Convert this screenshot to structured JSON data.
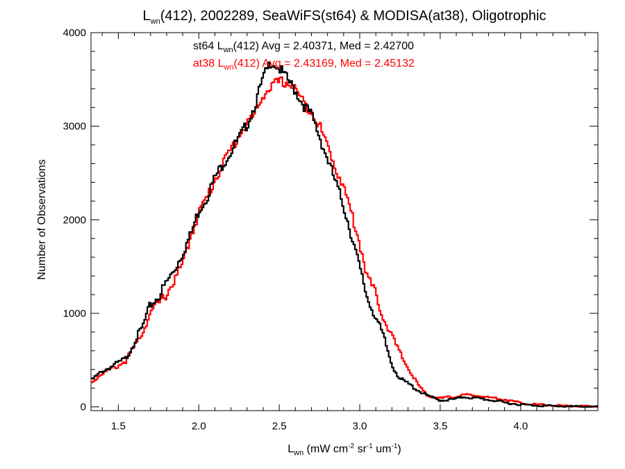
{
  "chart_data": {
    "type": "line",
    "title": {
      "main": "L",
      "main_sub": "wn",
      "rest": "(412), 2002289, SeaWiFS(st64) & MODISA(at38), Oligotrophic"
    },
    "xlabel": {
      "main": "L",
      "main_sub": "wn",
      "p1": " (mW cm",
      "sup1": "-2",
      "p2": " sr",
      "sup2": "-1",
      "p3": " um",
      "sup3": "-1",
      "p4": ")"
    },
    "ylabel": "Number of Observations",
    "xlim": [
      1.33,
      4.48
    ],
    "ylim": [
      -40,
      4000
    ],
    "xticks": [
      1.5,
      2.0,
      2.5,
      3.0,
      3.5,
      4.0
    ],
    "xtick_labels": [
      "1.5",
      "2.0",
      "2.5",
      "3.0",
      "3.5",
      "4.0"
    ],
    "yticks": [
      0,
      1000,
      2000,
      3000,
      4000
    ],
    "ytick_labels": [
      "0",
      "1000",
      "2000",
      "3000",
      "4000"
    ],
    "grid": false,
    "legend": [
      {
        "prefix": "st64 L",
        "sub": "wn",
        "suffix": "(412) Avg = 2.40371, Med = 2.42700",
        "color": "#000000"
      },
      {
        "prefix": "at38 L",
        "sub": "wn",
        "suffix": "(412) Avg = 2.43169, Med = 2.45132",
        "color": "#ff0000"
      }
    ],
    "series": [
      {
        "color": "#000000",
        "x": [
          1.33,
          1.4,
          1.5,
          1.55,
          1.6,
          1.65,
          1.7,
          1.75,
          1.8,
          1.85,
          1.9,
          1.95,
          2.0,
          2.05,
          2.1,
          2.15,
          2.2,
          2.25,
          2.3,
          2.35,
          2.4,
          2.45,
          2.5,
          2.55,
          2.6,
          2.65,
          2.7,
          2.75,
          2.8,
          2.85,
          2.9,
          2.95,
          3.0,
          3.05,
          3.1,
          3.15,
          3.2,
          3.25,
          3.3,
          3.35,
          3.4,
          3.45,
          3.5,
          3.55,
          3.6,
          3.65,
          3.7,
          3.75,
          3.8,
          3.85,
          3.9,
          3.95,
          4.0,
          4.05,
          4.1,
          4.2,
          4.3,
          4.4,
          4.48
        ],
        "y": [
          280,
          380,
          470,
          520,
          700,
          850,
          1090,
          1180,
          1330,
          1470,
          1650,
          1840,
          2100,
          2240,
          2450,
          2600,
          2730,
          2870,
          3020,
          3230,
          3510,
          3700,
          3620,
          3500,
          3380,
          3230,
          3120,
          2890,
          2650,
          2400,
          2150,
          1830,
          1480,
          1150,
          960,
          740,
          450,
          300,
          250,
          190,
          140,
          100,
          70,
          75,
          85,
          110,
          95,
          90,
          75,
          65,
          45,
          35,
          25,
          20,
          15,
          10,
          5,
          3,
          0
        ]
      },
      {
        "color": "#ff0000",
        "x": [
          1.33,
          1.4,
          1.5,
          1.55,
          1.6,
          1.65,
          1.7,
          1.75,
          1.8,
          1.85,
          1.9,
          1.95,
          2.0,
          2.05,
          2.1,
          2.15,
          2.2,
          2.25,
          2.3,
          2.35,
          2.4,
          2.45,
          2.5,
          2.55,
          2.6,
          2.65,
          2.7,
          2.75,
          2.8,
          2.85,
          2.9,
          2.95,
          3.0,
          3.05,
          3.1,
          3.15,
          3.2,
          3.25,
          3.3,
          3.35,
          3.4,
          3.45,
          3.5,
          3.55,
          3.6,
          3.65,
          3.7,
          3.75,
          3.8,
          3.85,
          3.9,
          3.95,
          4.0,
          4.05,
          4.1,
          4.2,
          4.3,
          4.4,
          4.48
        ],
        "y": [
          260,
          360,
          440,
          500,
          640,
          800,
          1010,
          1100,
          1210,
          1360,
          1520,
          1830,
          2080,
          2230,
          2430,
          2600,
          2750,
          2900,
          3040,
          3120,
          3340,
          3420,
          3470,
          3470,
          3400,
          3250,
          3170,
          3000,
          2790,
          2560,
          2350,
          2060,
          1750,
          1380,
          1200,
          940,
          760,
          570,
          420,
          270,
          150,
          110,
          90,
          100,
          110,
          130,
          120,
          115,
          100,
          95,
          80,
          60,
          45,
          35,
          25,
          15,
          10,
          5,
          2
        ]
      }
    ]
  }
}
